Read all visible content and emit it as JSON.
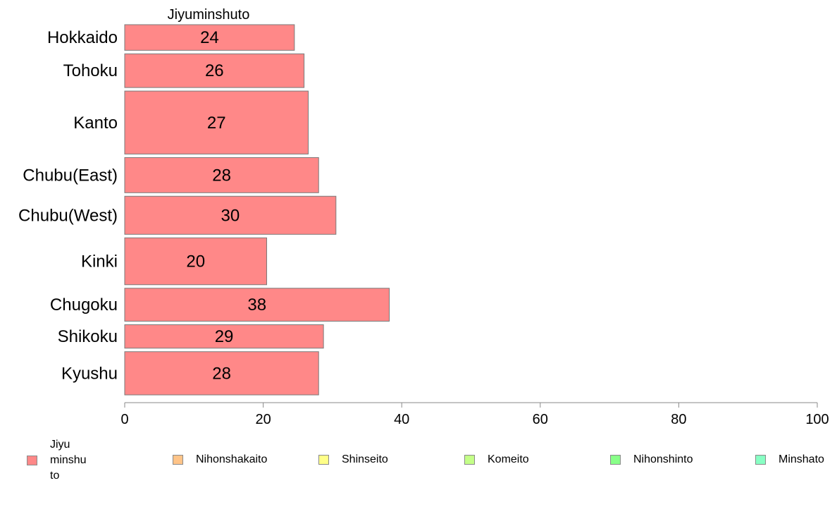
{
  "chart_data": {
    "type": "bar",
    "orientation": "horizontal",
    "title": "Jiyuminshuto",
    "categories": [
      "Hokkaido",
      "Tohoku",
      "Kanto",
      "Chubu(East)",
      "Chubu(West)",
      "Kinki",
      "Chugoku",
      "Shikoku",
      "Kyushu"
    ],
    "bar_widths_relative": [
      35,
      46,
      86,
      48,
      52,
      64,
      45,
      32,
      59
    ],
    "series": [
      {
        "name": "Jiyuminshuto",
        "color": "#FF8888",
        "values": [
          24.5,
          25.9,
          26.5,
          28.0,
          30.5,
          20.5,
          38.2,
          28.7,
          28.0
        ]
      }
    ],
    "data_labels": [
      "24",
      "26",
      "27",
      "28",
      "30",
      "20",
      "38",
      "29",
      "28"
    ],
    "xlim": [
      0,
      100
    ],
    "x_ticks": [
      "0",
      "20",
      "40",
      "60",
      "80",
      "100"
    ],
    "grid": false,
    "legend": {
      "position": "bottom",
      "items": [
        {
          "label": "Jiyu\nminshu\nto",
          "color": "#FF8888"
        },
        {
          "label": "Nihonshakaito",
          "color": "#FFC488"
        },
        {
          "label": "Shinseito",
          "color": "#FFFF88"
        },
        {
          "label": "Komeito",
          "color": "#C4FF88"
        },
        {
          "label": "Nihonshinto",
          "color": "#88FF88"
        },
        {
          "label": "Minshato",
          "color": "#88FFC4"
        }
      ]
    }
  }
}
